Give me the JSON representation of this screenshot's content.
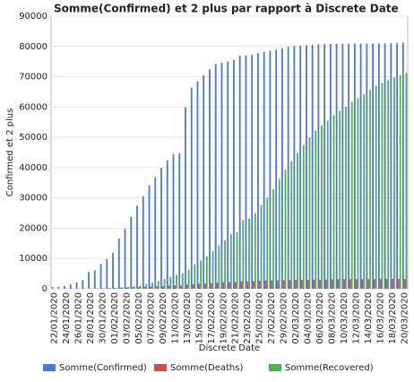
{
  "chart_data": {
    "type": "bar",
    "title": "Somme(Confirmed) et 2 plus par rapport à Discrete Date",
    "x_label": "Discrete Date",
    "y_label": "Confirmed et 2 plus",
    "categories": [
      "22/01/2020",
      null,
      "24/01/2020",
      null,
      "26/01/2020",
      null,
      "28/01/2020",
      null,
      "30/01/2020",
      null,
      "01/02/2020",
      null,
      "03/02/2020",
      null,
      "05/02/2020",
      null,
      "07/02/2020",
      null,
      "09/02/2020",
      null,
      "11/02/2020",
      null,
      "13/02/2020",
      null,
      "15/02/2020",
      null,
      "17/02/2020",
      null,
      "19/02/2020",
      null,
      "21/02/2020",
      null,
      "23/02/2020",
      null,
      "25/02/2020",
      null,
      "27/02/2020",
      null,
      "29/02/2020",
      null,
      "02/03/2020",
      null,
      "04/03/2020",
      null,
      "06/03/2020",
      null,
      "08/03/2020",
      null,
      "10/03/2020",
      null,
      "12/03/2020",
      null,
      "14/03/2020",
      null,
      "16/03/2020",
      null,
      "18/03/2020",
      null,
      "20/03/2020"
    ],
    "series": [
      {
        "name": "Somme(Confirmed)",
        "color": "#4a78d6",
        "values": [
          548,
          643,
          920,
          1406,
          2075,
          2877,
          5509,
          6087,
          8141,
          9802,
          11891,
          16630,
          19716,
          23707,
          27440,
          30587,
          34110,
          36814,
          39829,
          42354,
          44386,
          44759,
          59895,
          66358,
          68413,
          70513,
          72434,
          74211,
          74619,
          75077,
          75550,
          77001,
          77022,
          77241,
          77754,
          78166,
          78600,
          78928,
          79356,
          79932,
          80136,
          80261,
          80386,
          80537,
          80690,
          80770,
          80823,
          80860,
          80887,
          80921,
          80932,
          80945,
          80977,
          81003,
          81033,
          81058,
          81102,
          81156,
          81250
        ]
      },
      {
        "name": "Somme(Deaths)",
        "color": "#c9504f",
        "values": [
          17,
          18,
          26,
          42,
          56,
          82,
          131,
          133,
          171,
          213,
          259,
          361,
          425,
          491,
          563,
          633,
          718,
          805,
          905,
          1012,
          1112,
          1117,
          1369,
          1521,
          1663,
          1766,
          1864,
          2003,
          2116,
          2238,
          2238,
          2443,
          2445,
          2595,
          2665,
          2717,
          2746,
          2790,
          2837,
          2872,
          2914,
          2947,
          2983,
          3015,
          3044,
          3072,
          3100,
          3123,
          3139,
          3161,
          3172,
          3180,
          3193,
          3203,
          3217,
          3230,
          3241,
          3249,
          3253
        ]
      },
      {
        "name": "Somme(Recovered)",
        "color": "#4cb24f",
        "values": [
          28,
          30,
          36,
          39,
          49,
          58,
          101,
          120,
          135,
          214,
          275,
          463,
          614,
          843,
          1115,
          1476,
          1998,
          2595,
          3218,
          3917,
          4635,
          5079,
          6213,
          7973,
          9294,
          10748,
          12455,
          14199,
          15952,
          18002,
          18693,
          22687,
          23170,
          24990,
          27650,
          30053,
          32898,
          36291,
          39279,
          42118,
          44810,
          47404,
          49955,
          52240,
          53888,
          55478,
          57320,
          58735,
          60106,
          61644,
          62901,
          64196,
          65660,
          67017,
          67910,
          68798,
          69755,
          70535,
          71266
        ]
      }
    ],
    "ylim": [
      0,
      90000
    ],
    "yticks": [
      0,
      10000,
      20000,
      30000,
      40000,
      50000,
      60000,
      70000,
      80000,
      90000
    ],
    "grid": true,
    "legend": "bottom"
  }
}
